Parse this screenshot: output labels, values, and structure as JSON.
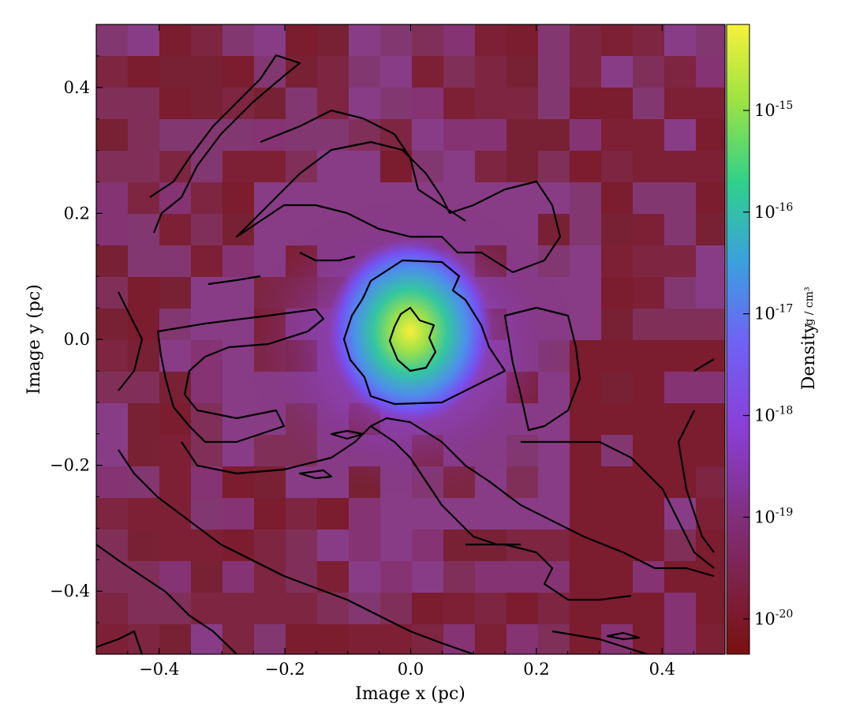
{
  "chart_data": {
    "type": "heatmap",
    "title": "",
    "xlabel": "Image x  (pc)",
    "ylabel": "Image y  (pc)",
    "xlim": [
      -0.5,
      0.5
    ],
    "ylim": [
      -0.5,
      0.5
    ],
    "x_ticks": [
      -0.4,
      -0.2,
      0.0,
      0.2,
      0.4
    ],
    "y_ticks": [
      -0.4,
      -0.2,
      0.0,
      0.2,
      0.4
    ],
    "x_tick_labels": [
      "−0.4",
      "−0.2",
      "0.0",
      "0.2",
      "0.4"
    ],
    "y_tick_labels": [
      "−0.4",
      "−0.2",
      "0.0",
      "0.2",
      "0.4"
    ],
    "grid": false,
    "colormap": "plasma-like (dark red → purple → blue → green → yellow)",
    "colorbar": {
      "label": "Density",
      "units": "g / cm³",
      "scale": "log",
      "range": [
        4.5e-21,
        7e-15
      ],
      "ticks": [
        1e-20,
        1e-19,
        1e-18,
        1e-17,
        1e-16,
        1e-15
      ],
      "tick_labels": [
        "10-20",
        "10-19",
        "10-18",
        "10-17",
        "10-16",
        "10-15"
      ],
      "colors": [
        "#7a0f0f",
        "#7e2a6a",
        "#8a3fd8",
        "#6f63f5",
        "#3b9fe0",
        "#2fd18a",
        "#9ee342",
        "#f5f23a"
      ]
    },
    "features": [
      {
        "name": "central density peak",
        "x": 0.0,
        "y": 0.0,
        "density": 6e-15
      },
      {
        "name": "bright core region",
        "x_range": [
          -0.1,
          0.1
        ],
        "y_range": [
          -0.1,
          0.1
        ]
      }
    ],
    "contours": "black iso-density contour lines overlaid"
  }
}
